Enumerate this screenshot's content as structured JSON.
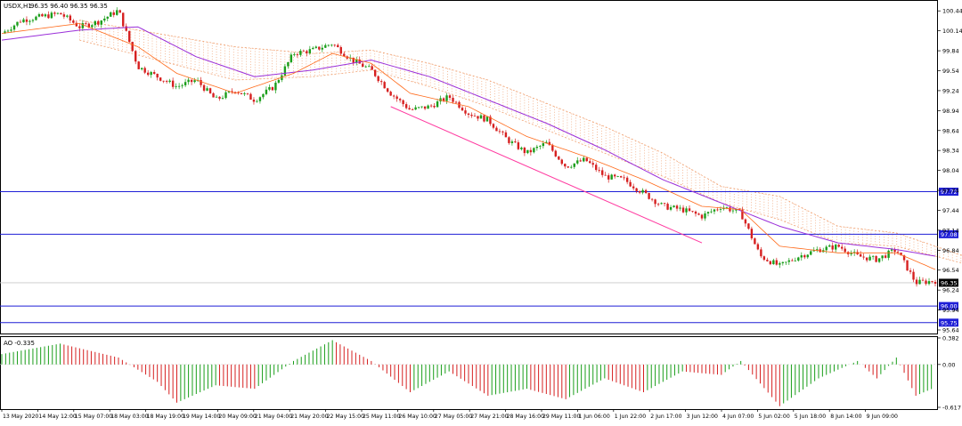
{
  "header": {
    "symbol_label": "USDX,H1",
    "ohlc_label": "96.35 96.40 96.35 96.35"
  },
  "oscillator": {
    "label": "AO -0.335",
    "ticks": [
      "0.382",
      "0.00",
      "-0.617"
    ]
  },
  "price_axis": {
    "ticks": [
      "100.44",
      "100.14",
      "99.84",
      "99.54",
      "99.24",
      "98.94",
      "98.64",
      "98.34",
      "98.04",
      "97.74",
      "97.44",
      "97.14",
      "96.84",
      "96.54",
      "96.24",
      "95.94",
      "95.64"
    ]
  },
  "levels": [
    {
      "value": 97.72,
      "label": "97.72",
      "color": "#1f1fd6"
    },
    {
      "value": 97.08,
      "label": "97.08",
      "color": "#1f1fd6"
    },
    {
      "value": 96.0,
      "label": "96.00",
      "color": "#1f1fd6"
    },
    {
      "value": 95.75,
      "label": "95.75",
      "color": "#1f1fd6"
    }
  ],
  "current_price": {
    "value": 96.35,
    "label": "96.35",
    "color": "#000000"
  },
  "time_axis": {
    "labels": [
      "13 May 2020",
      "14 May 12:00",
      "15 May 07:00",
      "18 May 03:00",
      "18 May 19:00",
      "19 May 14:00",
      "20 May 09:00",
      "21 May 04:00",
      "21 May 20:00",
      "22 May 15:00",
      "25 May 11:00",
      "26 May 10:00",
      "27 May 05:00",
      "27 May 21:00",
      "28 May 16:00",
      "29 May 11:00",
      "1 Jun 06:00",
      "1 Jun 22:00",
      "2 Jun 17:00",
      "3 Jun 12:00",
      "4 Jun 07:00",
      "5 Jun 02:00",
      "5 Jun 18:00",
      "8 Jun 14:00",
      "9 Jun 09:00"
    ]
  },
  "colors": {
    "bull": "#1a9e1a",
    "bear": "#d62020",
    "ma_fast": "#ff6a1a",
    "ma_slow": "#9b30d9",
    "cloud": "#f0a070",
    "channel": "#ff3aa0",
    "level": "#1f1fd6",
    "ao_up": "#1a9e1a",
    "ao_down": "#d62020"
  },
  "chart_data": {
    "type": "candlestick",
    "symbol": "USDX",
    "timeframe": "H1",
    "ylim": [
      95.6,
      100.55
    ],
    "x_labels": [
      "13 May 2020",
      "14 May 12:00",
      "15 May 07:00",
      "18 May 03:00",
      "18 May 19:00",
      "19 May 14:00",
      "20 May 09:00",
      "21 May 04:00",
      "21 May 20:00",
      "22 May 15:00",
      "25 May 11:00",
      "26 May 10:00",
      "27 May 05:00",
      "27 May 21:00",
      "28 May 16:00",
      "29 May 11:00",
      "1 Jun 06:00",
      "1 Jun 22:00",
      "2 Jun 17:00",
      "3 Jun 12:00",
      "4 Jun 07:00",
      "5 Jun 02:00",
      "5 Jun 18:00",
      "8 Jun 14:00",
      "9 Jun 09:00"
    ],
    "close_path": [
      [
        0,
        100.1
      ],
      [
        1,
        100.3
      ],
      [
        2,
        100.35
      ],
      [
        3,
        100.4
      ],
      [
        4,
        100.2
      ],
      [
        5,
        100.28
      ],
      [
        6,
        100.45
      ],
      [
        7,
        99.6
      ],
      [
        8,
        99.45
      ],
      [
        9,
        99.3
      ],
      [
        10,
        99.4
      ],
      [
        11,
        99.1
      ],
      [
        12,
        99.25
      ],
      [
        13,
        99.1
      ],
      [
        14,
        99.3
      ],
      [
        15,
        99.8
      ],
      [
        16,
        99.85
      ],
      [
        17,
        99.95
      ],
      [
        18,
        99.7
      ],
      [
        19,
        99.55
      ],
      [
        20,
        99.2
      ],
      [
        21,
        98.95
      ],
      [
        22,
        99.0
      ],
      [
        23,
        99.15
      ],
      [
        24,
        98.9
      ],
      [
        25,
        98.8
      ],
      [
        26,
        98.5
      ],
      [
        27,
        98.3
      ],
      [
        28,
        98.45
      ],
      [
        29,
        98.1
      ],
      [
        30,
        98.2
      ],
      [
        31,
        97.95
      ],
      [
        32,
        97.9
      ],
      [
        33,
        97.7
      ],
      [
        34,
        97.5
      ],
      [
        35,
        97.45
      ],
      [
        36,
        97.35
      ],
      [
        37,
        97.5
      ],
      [
        38,
        97.4
      ],
      [
        39,
        96.75
      ],
      [
        40,
        96.6
      ],
      [
        41,
        96.75
      ],
      [
        42,
        96.85
      ],
      [
        43,
        96.9
      ],
      [
        44,
        96.75
      ],
      [
        45,
        96.7
      ],
      [
        46,
        96.85
      ],
      [
        47,
        96.35
      ],
      [
        48,
        96.38
      ]
    ],
    "ma_fast": [
      [
        0,
        100.1
      ],
      [
        4,
        100.25
      ],
      [
        7,
        99.9
      ],
      [
        9,
        99.5
      ],
      [
        12,
        99.2
      ],
      [
        15,
        99.5
      ],
      [
        17,
        99.8
      ],
      [
        19,
        99.65
      ],
      [
        21,
        99.2
      ],
      [
        24,
        99.0
      ],
      [
        27,
        98.55
      ],
      [
        30,
        98.25
      ],
      [
        33,
        97.9
      ],
      [
        36,
        97.5
      ],
      [
        38,
        97.45
      ],
      [
        40,
        96.9
      ],
      [
        43,
        96.8
      ],
      [
        46,
        96.8
      ],
      [
        48,
        96.55
      ]
    ],
    "ma_slow": [
      [
        0,
        100.0
      ],
      [
        4,
        100.15
      ],
      [
        7,
        100.2
      ],
      [
        10,
        99.75
      ],
      [
        13,
        99.45
      ],
      [
        16,
        99.55
      ],
      [
        19,
        99.7
      ],
      [
        22,
        99.45
      ],
      [
        25,
        99.1
      ],
      [
        28,
        98.75
      ],
      [
        31,
        98.35
      ],
      [
        34,
        97.9
      ],
      [
        37,
        97.55
      ],
      [
        40,
        97.2
      ],
      [
        43,
        96.95
      ],
      [
        46,
        96.85
      ],
      [
        48,
        96.75
      ]
    ],
    "cloud_top": [
      [
        4,
        100.3
      ],
      [
        8,
        100.1
      ],
      [
        12,
        99.9
      ],
      [
        16,
        99.8
      ],
      [
        19,
        99.85
      ],
      [
        22,
        99.65
      ],
      [
        25,
        99.4
      ],
      [
        28,
        99.05
      ],
      [
        31,
        98.7
      ],
      [
        34,
        98.3
      ],
      [
        37,
        97.8
      ],
      [
        40,
        97.65
      ],
      [
        43,
        97.2
      ],
      [
        46,
        97.1
      ],
      [
        50,
        96.7
      ]
    ],
    "cloud_bottom": [
      [
        4,
        100.0
      ],
      [
        8,
        99.7
      ],
      [
        12,
        99.4
      ],
      [
        16,
        99.45
      ],
      [
        19,
        99.55
      ],
      [
        22,
        99.3
      ],
      [
        25,
        99.0
      ],
      [
        28,
        98.65
      ],
      [
        31,
        98.3
      ],
      [
        34,
        97.95
      ],
      [
        37,
        97.55
      ],
      [
        40,
        97.3
      ],
      [
        43,
        96.95
      ],
      [
        46,
        96.9
      ],
      [
        50,
        96.6
      ]
    ],
    "channel_line": [
      [
        20,
        99.0
      ],
      [
        36,
        96.95
      ]
    ],
    "levels": [
      97.72,
      97.08,
      96.0,
      95.75
    ],
    "current_price": 96.35,
    "oscillator": {
      "name": "AO",
      "value": -0.335,
      "ylim": [
        -0.617,
        0.382
      ],
      "path": [
        [
          0,
          0.15
        ],
        [
          3,
          0.3
        ],
        [
          6,
          0.1
        ],
        [
          8,
          -0.25
        ],
        [
          9,
          -0.55
        ],
        [
          11,
          -0.3
        ],
        [
          13,
          -0.35
        ],
        [
          15,
          0.05
        ],
        [
          17,
          0.35
        ],
        [
          19,
          0.05
        ],
        [
          21,
          -0.4
        ],
        [
          23,
          -0.1
        ],
        [
          25,
          -0.45
        ],
        [
          27,
          -0.35
        ],
        [
          29,
          -0.5
        ],
        [
          31,
          -0.2
        ],
        [
          33,
          -0.4
        ],
        [
          35,
          -0.1
        ],
        [
          37,
          -0.15
        ],
        [
          38,
          0.05
        ],
        [
          40,
          -0.6
        ],
        [
          42,
          -0.2
        ],
        [
          44,
          0.05
        ],
        [
          45,
          -0.2
        ],
        [
          46,
          0.1
        ],
        [
          47,
          -0.45
        ],
        [
          48,
          -0.33
        ]
      ]
    }
  }
}
